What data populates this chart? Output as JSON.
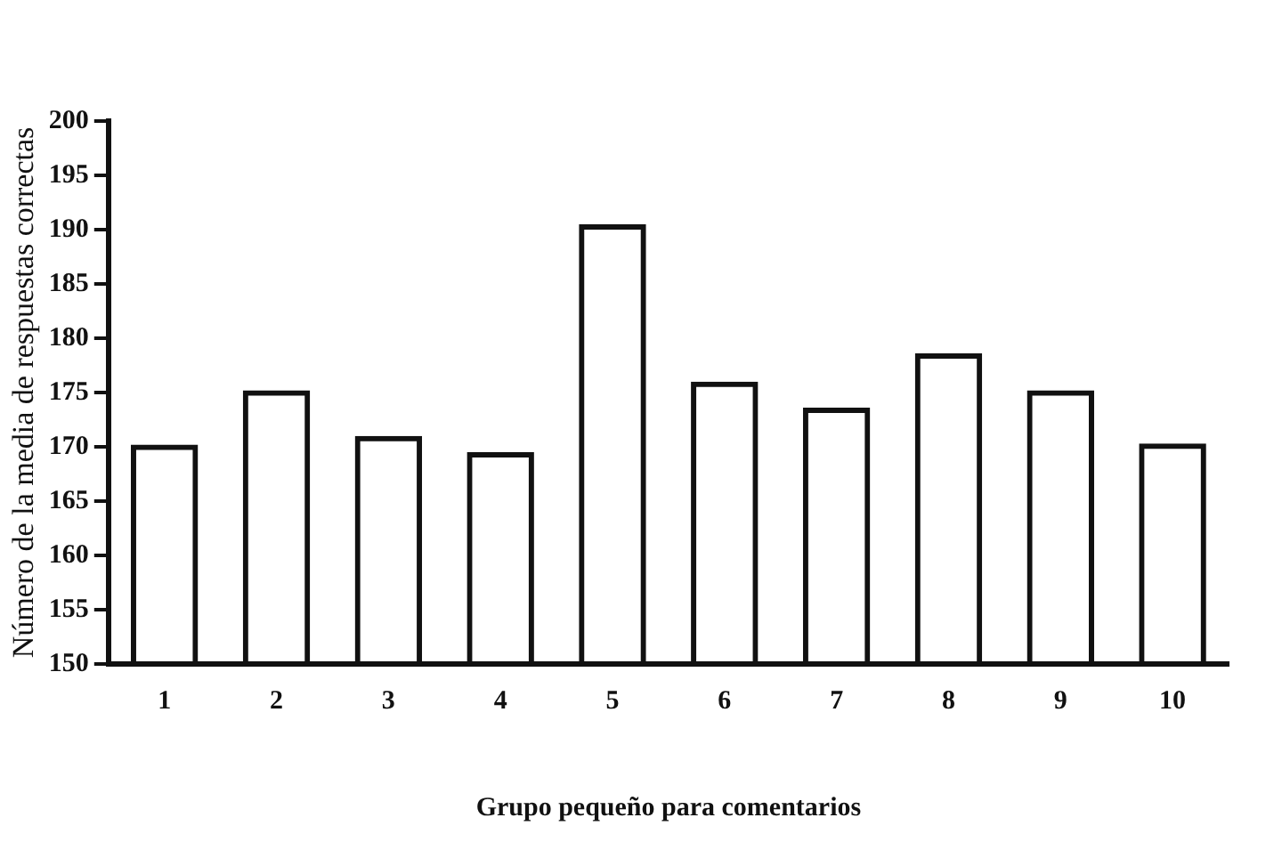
{
  "chart_data": {
    "type": "bar",
    "xlabel": "Grupo pequeño para comentarios",
    "ylabel": "Número de la media de respuestas correctas",
    "categories": [
      "1",
      "2",
      "3",
      "4",
      "5",
      "6",
      "7",
      "8",
      "9",
      "10"
    ],
    "values": [
      170.2,
      175.2,
      171,
      169.5,
      190.5,
      176,
      173.6,
      178.6,
      175.2,
      170.3
    ],
    "color": "#111111",
    "ylim": [
      150,
      200
    ],
    "yticks": [
      150,
      155,
      160,
      165,
      170,
      175,
      180,
      185,
      190,
      195,
      200
    ],
    "grid": false,
    "legend": false
  }
}
